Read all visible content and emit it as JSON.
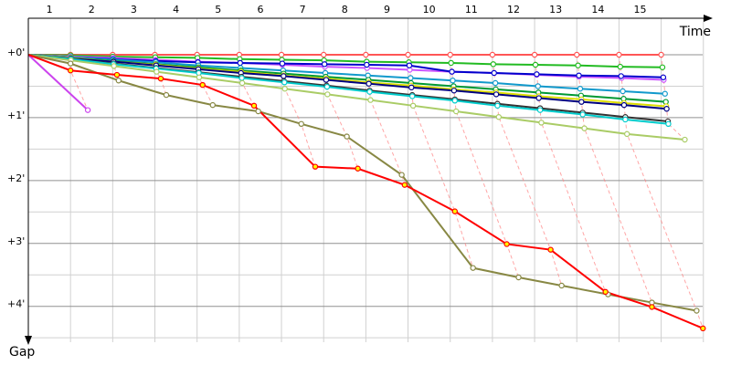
{
  "chart_data": {
    "type": "line",
    "x_label": "Time",
    "y_label": "Gap",
    "xlim": [
      0,
      16.2
    ],
    "ylim": [
      -0.58,
      4.57
    ],
    "xticks": [
      {
        "value": 0.5,
        "label": "1"
      },
      {
        "value": 1.5,
        "label": "2"
      },
      {
        "value": 2.5,
        "label": "3"
      },
      {
        "value": 3.5,
        "label": "4"
      },
      {
        "value": 4.5,
        "label": "5"
      },
      {
        "value": 5.5,
        "label": "6"
      },
      {
        "value": 6.5,
        "label": "7"
      },
      {
        "value": 7.5,
        "label": "8"
      },
      {
        "value": 8.5,
        "label": "9"
      },
      {
        "value": 9.5,
        "label": "10"
      },
      {
        "value": 10.5,
        "label": "11"
      },
      {
        "value": 11.5,
        "label": "12"
      },
      {
        "value": 12.5,
        "label": "13"
      },
      {
        "value": 13.5,
        "label": "14"
      },
      {
        "value": 14.5,
        "label": "15"
      }
    ],
    "xgrid": [
      1,
      2,
      3,
      4,
      5,
      6,
      7,
      8,
      9,
      10,
      11,
      12,
      13,
      14,
      15,
      16
    ],
    "yticks": [
      {
        "value": 0,
        "label": "+0'"
      },
      {
        "value": 1,
        "label": "+1'"
      },
      {
        "value": 2,
        "label": "+2'"
      },
      {
        "value": 3,
        "label": "+3'"
      },
      {
        "value": 4,
        "label": "+4'"
      }
    ],
    "ygrid": [
      0.5,
      1.5,
      2.5,
      3.5,
      4.5
    ],
    "grid": true,
    "series": [
      {
        "color": "#ff5555",
        "x": [
          0,
          1,
          2,
          3,
          4,
          5,
          6,
          7,
          8,
          9,
          10,
          11,
          12,
          13,
          14,
          15
        ],
        "values": [
          0,
          0,
          0,
          0,
          0,
          0,
          0,
          0,
          0,
          0,
          0,
          0,
          0,
          0,
          0,
          0
        ]
      },
      {
        "color": "#cc44ee",
        "x": [
          0,
          1.41
        ],
        "values": [
          0,
          0.88
        ]
      },
      {
        "color": "#22bb22",
        "x": [
          0,
          1,
          2,
          3.01,
          4.01,
          5.01,
          6.01,
          7.01,
          8.02,
          9.02,
          10.02,
          11.02,
          12.02,
          13.03,
          14.03,
          15.03
        ],
        "values": [
          0,
          0.01,
          0.03,
          0.04,
          0.05,
          0.07,
          0.08,
          0.09,
          0.11,
          0.12,
          0.13,
          0.15,
          0.16,
          0.17,
          0.19,
          0.2
        ]
      },
      {
        "color": "#cc55ff",
        "x": [
          0,
          1,
          2.01,
          3.01,
          4.02,
          5.02,
          6.02,
          7.03,
          8.03,
          9.04,
          10.04,
          11.04,
          12.05,
          13.05,
          14.06,
          15.06
        ],
        "values": [
          0,
          0.03,
          0.05,
          0.08,
          0.11,
          0.13,
          0.16,
          0.19,
          0.21,
          0.24,
          0.27,
          0.29,
          0.32,
          0.35,
          0.37,
          0.4
        ]
      },
      {
        "color": "#0000cc",
        "x": [
          0,
          1.01,
          2.01,
          3.02,
          4.02,
          5.02,
          6.02,
          7.02,
          8.02,
          9.03,
          10.04,
          11.04,
          12.05,
          13.05,
          14.05,
          15.05
        ],
        "values": [
          0,
          0.04,
          0.07,
          0.1,
          0.12,
          0.13,
          0.14,
          0.15,
          0.16,
          0.17,
          0.27,
          0.29,
          0.31,
          0.33,
          0.34,
          0.36
        ]
      },
      {
        "color": "#1199cc",
        "x": [
          0,
          1.01,
          2.01,
          3.02,
          4.03,
          5.03,
          6.04,
          7.04,
          8.05,
          9.06,
          10.06,
          11.07,
          12.08,
          13.08,
          14.09,
          15.09
        ],
        "values": [
          0,
          0.04,
          0.08,
          0.12,
          0.17,
          0.21,
          0.25,
          0.29,
          0.33,
          0.37,
          0.41,
          0.45,
          0.5,
          0.54,
          0.58,
          0.62
        ]
      },
      {
        "color": "#009933",
        "x": [
          0,
          1.01,
          2.02,
          3.02,
          4.03,
          5.04,
          6.05,
          7.05,
          8.06,
          9.07,
          10.08,
          11.08,
          12.09,
          13.1,
          14.11,
          15.11
        ],
        "values": [
          0,
          0.05,
          0.1,
          0.15,
          0.2,
          0.25,
          0.3,
          0.35,
          0.4,
          0.45,
          0.5,
          0.55,
          0.6,
          0.65,
          0.7,
          0.75
        ]
      },
      {
        "color": "#dddd00",
        "x": [
          0,
          1.01,
          2.02,
          3.02,
          4.03,
          5.04,
          6.05,
          7.06,
          8.07,
          9.07,
          10.08,
          11.09,
          12.1,
          13.11,
          14.12,
          15.12
        ],
        "values": [
          0,
          0.05,
          0.11,
          0.16,
          0.22,
          0.27,
          0.33,
          0.38,
          0.44,
          0.49,
          0.55,
          0.6,
          0.66,
          0.71,
          0.77,
          0.82
        ]
      },
      {
        "color": "#000080",
        "x": [
          0,
          1.01,
          2.02,
          3.03,
          4.03,
          5.04,
          6.05,
          7.06,
          8.07,
          9.08,
          10.09,
          11.09,
          12.1,
          13.11,
          14.12,
          15.13
        ],
        "values": [
          0,
          0.06,
          0.11,
          0.17,
          0.23,
          0.29,
          0.34,
          0.4,
          0.46,
          0.52,
          0.57,
          0.63,
          0.69,
          0.75,
          0.8,
          0.86
        ]
      },
      {
        "color": "#333333",
        "x": [
          0,
          1.01,
          2.02,
          3.03,
          4.04,
          5.05,
          6.06,
          7.07,
          8.09,
          9.1,
          10.11,
          11.12,
          12.13,
          13.14,
          14.15,
          15.16
        ],
        "values": [
          0,
          0.07,
          0.14,
          0.21,
          0.28,
          0.35,
          0.42,
          0.49,
          0.57,
          0.64,
          0.71,
          0.78,
          0.85,
          0.92,
          0.99,
          1.06
        ]
      },
      {
        "color": "#00cccc",
        "x": [
          0,
          1.01,
          2.02,
          3.03,
          4.04,
          5.06,
          6.07,
          7.08,
          8.09,
          9.1,
          10.11,
          11.12,
          12.13,
          13.14,
          14.15,
          15.17
        ],
        "values": [
          0,
          0.07,
          0.15,
          0.22,
          0.29,
          0.37,
          0.44,
          0.51,
          0.59,
          0.66,
          0.73,
          0.81,
          0.88,
          0.95,
          1.03,
          1.1
        ]
      },
      {
        "color": "#aacc66",
        "x": [
          0,
          1.01,
          2.03,
          3.04,
          4.05,
          5.07,
          6.08,
          7.09,
          8.11,
          9.12,
          10.14,
          11.15,
          12.16,
          13.18,
          14.19,
          15.56
        ],
        "values": [
          0,
          0.09,
          0.18,
          0.27,
          0.36,
          0.45,
          0.54,
          0.63,
          0.72,
          0.81,
          0.9,
          0.99,
          1.08,
          1.17,
          1.26,
          1.35
        ]
      },
      {
        "color": "#888844",
        "x": [
          0,
          1.0,
          2.14,
          3.27,
          4.37,
          5.45,
          6.47,
          7.55,
          8.85,
          10.54,
          11.62,
          12.64,
          13.74,
          14.78,
          15.84
        ],
        "values": [
          0,
          0.14,
          0.41,
          0.64,
          0.8,
          0.9,
          1.1,
          1.3,
          1.91,
          3.39,
          3.54,
          3.67,
          3.81,
          3.94,
          4.07
        ]
      },
      {
        "color": "#ff0000",
        "marker_fill": "#ffff00",
        "x": [
          0,
          1.0,
          2.1,
          3.14,
          4.13,
          5.35,
          6.8,
          7.81,
          8.92,
          10.11,
          11.34,
          12.38,
          13.68,
          14.78,
          15.99
        ],
        "values": [
          0,
          0.25,
          0.32,
          0.38,
          0.48,
          0.81,
          1.78,
          1.81,
          2.07,
          2.49,
          3.01,
          3.1,
          3.77,
          4.01,
          4.35
        ]
      }
    ]
  }
}
